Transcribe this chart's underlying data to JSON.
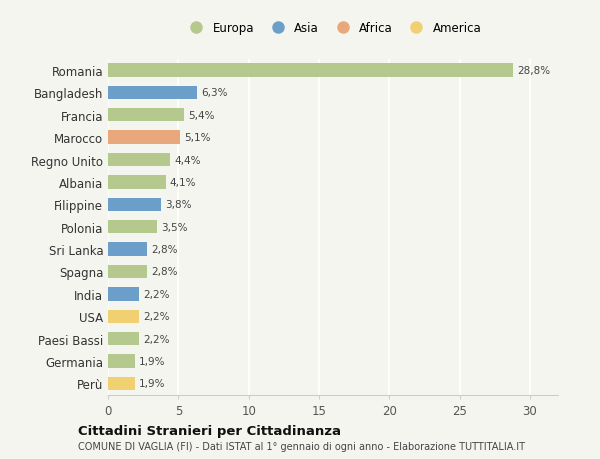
{
  "countries": [
    "Romania",
    "Bangladesh",
    "Francia",
    "Marocco",
    "Regno Unito",
    "Albania",
    "Filippine",
    "Polonia",
    "Sri Lanka",
    "Spagna",
    "India",
    "USA",
    "Paesi Bassi",
    "Germania",
    "Perù"
  ],
  "values": [
    28.8,
    6.3,
    5.4,
    5.1,
    4.4,
    4.1,
    3.8,
    3.5,
    2.8,
    2.8,
    2.2,
    2.2,
    2.2,
    1.9,
    1.9
  ],
  "labels": [
    "28,8%",
    "6,3%",
    "5,4%",
    "5,1%",
    "4,4%",
    "4,1%",
    "3,8%",
    "3,5%",
    "2,8%",
    "2,8%",
    "2,2%",
    "2,2%",
    "2,2%",
    "1,9%",
    "1,9%"
  ],
  "continents": [
    "Europa",
    "Asia",
    "Europa",
    "Africa",
    "Europa",
    "Europa",
    "Asia",
    "Europa",
    "Asia",
    "Europa",
    "Asia",
    "America",
    "Europa",
    "Europa",
    "America"
  ],
  "continent_colors": {
    "Europa": "#b5c98e",
    "Asia": "#6b9ec8",
    "Africa": "#e8a87c",
    "America": "#f0d070"
  },
  "legend_order": [
    "Europa",
    "Asia",
    "Africa",
    "America"
  ],
  "xlim": [
    0,
    32
  ],
  "xticks": [
    0,
    5,
    10,
    15,
    20,
    25,
    30
  ],
  "title": "Cittadini Stranieri per Cittadinanza",
  "subtitle": "COMUNE DI VAGLIA (FI) - Dati ISTAT al 1° gennaio di ogni anno - Elaborazione TUTTITALIA.IT",
  "background_color": "#f5f5f0",
  "bar_height": 0.6,
  "grid_color": "#ffffff",
  "label_fontsize": 7.5,
  "ytick_fontsize": 8.5,
  "xtick_fontsize": 8.5
}
